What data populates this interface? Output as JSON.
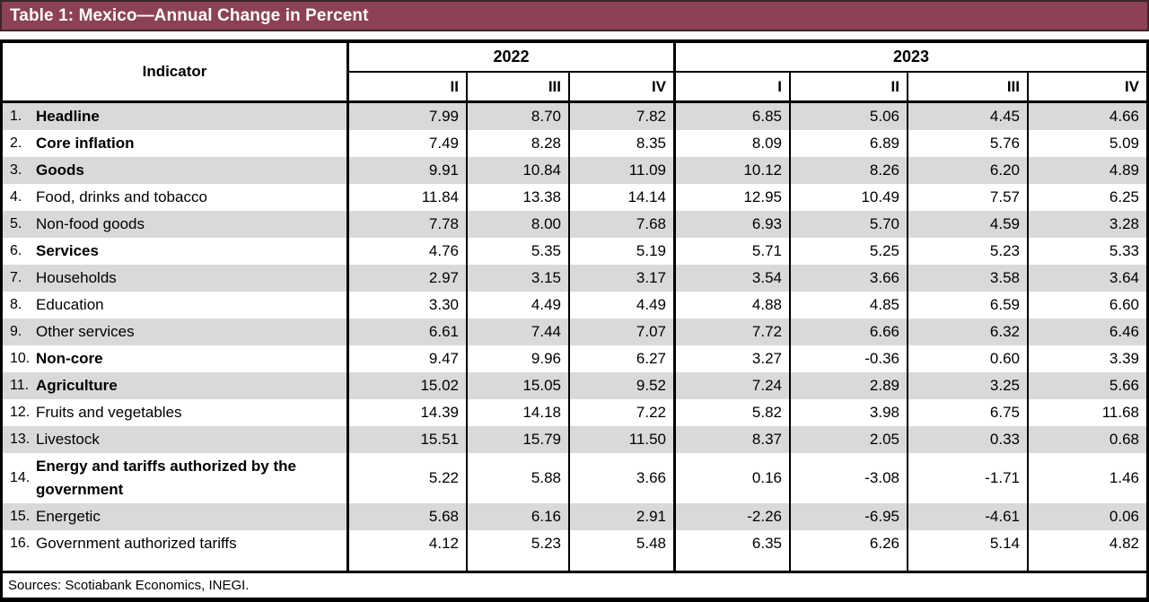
{
  "title": "Table 1: Mexico—Annual Change in Percent",
  "header": {
    "indicator_label": "Indicator",
    "year_groups": [
      {
        "label": "2022",
        "quarters": [
          "II",
          "III",
          "IV"
        ]
      },
      {
        "label": "2023",
        "quarters": [
          "I",
          "II",
          "III",
          "IV"
        ]
      }
    ]
  },
  "rows": [
    {
      "num": "1.",
      "label": "Headline",
      "bold": true,
      "values": [
        "7.99",
        "8.70",
        "7.82",
        "6.85",
        "5.06",
        "4.45",
        "4.66"
      ]
    },
    {
      "num": "2.",
      "label": "Core inflation",
      "bold": true,
      "values": [
        "7.49",
        "8.28",
        "8.35",
        "8.09",
        "6.89",
        "5.76",
        "5.09"
      ]
    },
    {
      "num": "3.",
      "label": "Goods",
      "bold": true,
      "values": [
        "9.91",
        "10.84",
        "11.09",
        "10.12",
        "8.26",
        "6.20",
        "4.89"
      ]
    },
    {
      "num": "4.",
      "label": "Food, drinks and tobacco",
      "bold": false,
      "values": [
        "11.84",
        "13.38",
        "14.14",
        "12.95",
        "10.49",
        "7.57",
        "6.25"
      ]
    },
    {
      "num": "5.",
      "label": "Non-food goods",
      "bold": false,
      "values": [
        "7.78",
        "8.00",
        "7.68",
        "6.93",
        "5.70",
        "4.59",
        "3.28"
      ]
    },
    {
      "num": "6.",
      "label": "Services",
      "bold": true,
      "values": [
        "4.76",
        "5.35",
        "5.19",
        "5.71",
        "5.25",
        "5.23",
        "5.33"
      ]
    },
    {
      "num": "7.",
      "label": "Households",
      "bold": false,
      "values": [
        "2.97",
        "3.15",
        "3.17",
        "3.54",
        "3.66",
        "3.58",
        "3.64"
      ]
    },
    {
      "num": "8.",
      "label": "Education",
      "bold": false,
      "values": [
        "3.30",
        "4.49",
        "4.49",
        "4.88",
        "4.85",
        "6.59",
        "6.60"
      ]
    },
    {
      "num": "9.",
      "label": "Other services",
      "bold": false,
      "values": [
        "6.61",
        "7.44",
        "7.07",
        "7.72",
        "6.66",
        "6.32",
        "6.46"
      ]
    },
    {
      "num": "10.",
      "label": "Non-core",
      "bold": true,
      "values": [
        "9.47",
        "9.96",
        "6.27",
        "3.27",
        "-0.36",
        "0.60",
        "3.39"
      ]
    },
    {
      "num": "11.",
      "label": "Agriculture",
      "bold": true,
      "values": [
        "15.02",
        "15.05",
        "9.52",
        "7.24",
        "2.89",
        "3.25",
        "5.66"
      ]
    },
    {
      "num": "12.",
      "label": "Fruits and vegetables",
      "bold": false,
      "values": [
        "14.39",
        "14.18",
        "7.22",
        "5.82",
        "3.98",
        "6.75",
        "11.68"
      ]
    },
    {
      "num": "13.",
      "label": "Livestock",
      "bold": false,
      "values": [
        "15.51",
        "15.79",
        "11.50",
        "8.37",
        "2.05",
        "0.33",
        "0.68"
      ]
    },
    {
      "num": "14.",
      "label": "Energy and tariffs authorized by the government",
      "bold": true,
      "values": [
        "5.22",
        "5.88",
        "3.66",
        "0.16",
        "-3.08",
        "-1.71",
        "1.46"
      ]
    },
    {
      "num": "15.",
      "label": "Energetic",
      "bold": false,
      "values": [
        "5.68",
        "6.16",
        "2.91",
        "-2.26",
        "-6.95",
        "-4.61",
        "0.06"
      ]
    },
    {
      "num": "16.",
      "label": "Government authorized tariffs",
      "bold": false,
      "values": [
        "4.12",
        "5.23",
        "5.48",
        "6.35",
        "6.26",
        "5.14",
        "4.82"
      ]
    }
  ],
  "footer": "Sources: Scotiabank Economics, INEGI.",
  "colors": {
    "title_bar_bg": "#8C4154",
    "title_text": "#FFFFFF",
    "row_shade": "#D9D9D9",
    "border": "#000000"
  }
}
